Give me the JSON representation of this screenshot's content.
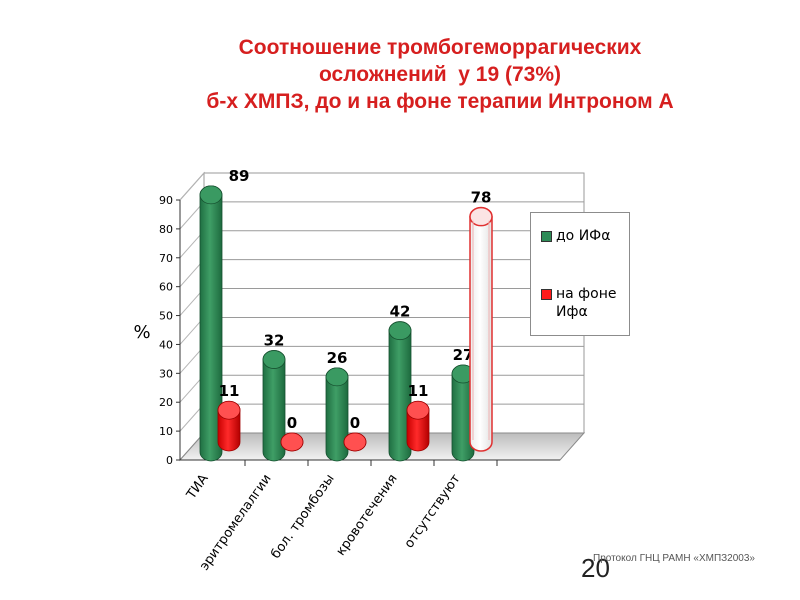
{
  "title": {
    "line1": "Соотношение тромбогеморрагических",
    "line2": "осложнений  у 19 (73%)",
    "line3": "б-х ХМПЗ, до и на фоне терапии Интроном А"
  },
  "chart_data": {
    "type": "bar",
    "categories": [
      "ТИА",
      "эритромелалгии",
      "бол. тромбозы",
      "кровотечения",
      "отсутствуют"
    ],
    "series": [
      {
        "name": "до ИФα",
        "values": [
          89,
          32,
          26,
          42,
          27
        ],
        "color": "#2e8b57"
      },
      {
        "name": "на фоне Ифα",
        "values": [
          11,
          0,
          0,
          11,
          78
        ],
        "color": "#ff1a1a"
      }
    ],
    "highlight": {
      "series": 1,
      "category": 4,
      "fill": "#ffffff",
      "stroke": "#e03030"
    },
    "ylabel": "%",
    "xlabel": "",
    "ylim": [
      0,
      90
    ],
    "yticks": [
      0,
      10,
      20,
      30,
      40,
      50,
      60,
      70,
      80,
      90
    ],
    "grid": true,
    "legend_position": "right"
  },
  "footer": {
    "note": "Протокол ГНЦ РАМН «ХМПЗ2003»",
    "slide_number": "20"
  }
}
